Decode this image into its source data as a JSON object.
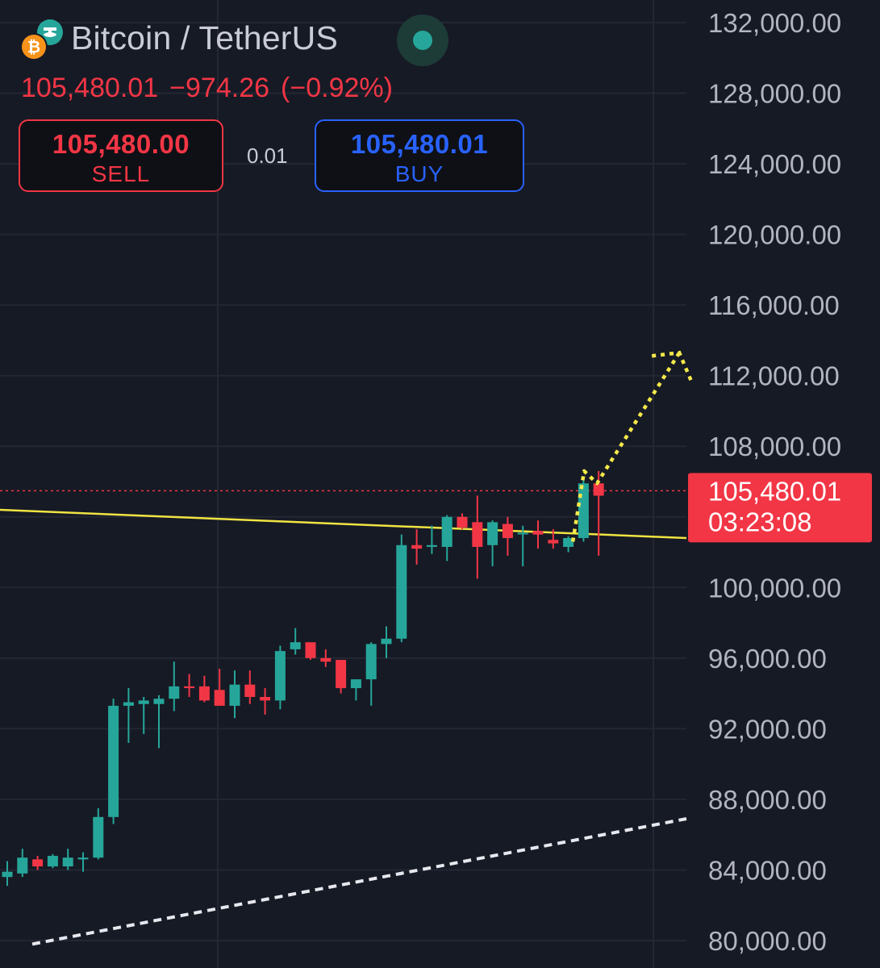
{
  "symbol": {
    "title": "Bitcoin / TetherUS",
    "base_icon": "bitcoin-icon",
    "quote_icon": "tether-icon",
    "market_status": "open"
  },
  "quote": {
    "last": "105,480.01",
    "change": "−974.26",
    "change_pct": "(−0.92%)"
  },
  "trade": {
    "sell_price": "105,480.00",
    "sell_label": "SELL",
    "spread": "0.01",
    "buy_price": "105,480.01",
    "buy_label": "BUY"
  },
  "price_tag": {
    "price": "105,480.01",
    "countdown": "03:23:08"
  },
  "colors": {
    "background": "#161a25",
    "up": "#26a69a",
    "down": "#f23645",
    "buy": "#2962ff",
    "trendline": "#f0e442",
    "projection": "#f5e94a",
    "support": "#e6e8ee",
    "grid": "#232733"
  },
  "chart_data": {
    "type": "candlestick",
    "y_axis": {
      "min": 80000,
      "max": 132000,
      "ticks": [
        132000,
        128000,
        124000,
        120000,
        116000,
        112000,
        108000,
        100000,
        96000,
        92000,
        88000,
        84000,
        80000
      ],
      "tick_labels": [
        "132,000.00",
        "128,000.00",
        "124,000.00",
        "120,000.00",
        "116,000.00",
        "112,000.00",
        "108,000.00",
        "100,000.00",
        "96,000.00",
        "92,000.00",
        "88,000.00",
        "84,000.00",
        "80,000.00"
      ],
      "position": "right"
    },
    "grid": true,
    "current_price": 105480.01,
    "candles": [
      {
        "o": 83600,
        "h": 84500,
        "l": 83100,
        "c": 83900
      },
      {
        "o": 83800,
        "h": 85200,
        "l": 83600,
        "c": 84700
      },
      {
        "o": 84600,
        "h": 84800,
        "l": 84000,
        "c": 84200
      },
      {
        "o": 84200,
        "h": 84900,
        "l": 84100,
        "c": 84800
      },
      {
        "o": 84200,
        "h": 85200,
        "l": 84000,
        "c": 84700
      },
      {
        "o": 84600,
        "h": 85000,
        "l": 83900,
        "c": 84700
      },
      {
        "o": 84700,
        "h": 87500,
        "l": 84600,
        "c": 87000
      },
      {
        "o": 87000,
        "h": 93700,
        "l": 86600,
        "c": 93300
      },
      {
        "o": 93300,
        "h": 94300,
        "l": 91200,
        "c": 93500
      },
      {
        "o": 93400,
        "h": 93800,
        "l": 91700,
        "c": 93600
      },
      {
        "o": 93400,
        "h": 93900,
        "l": 90900,
        "c": 93700
      },
      {
        "o": 93700,
        "h": 95800,
        "l": 93000,
        "c": 94400
      },
      {
        "o": 94400,
        "h": 95100,
        "l": 93800,
        "c": 94300
      },
      {
        "o": 94400,
        "h": 95000,
        "l": 93500,
        "c": 93600
      },
      {
        "o": 94200,
        "h": 95400,
        "l": 93400,
        "c": 93300
      },
      {
        "o": 93300,
        "h": 95300,
        "l": 92600,
        "c": 94500
      },
      {
        "o": 94500,
        "h": 95300,
        "l": 93400,
        "c": 93800
      },
      {
        "o": 93800,
        "h": 94300,
        "l": 92800,
        "c": 93600
      },
      {
        "o": 93600,
        "h": 96700,
        "l": 93100,
        "c": 96400
      },
      {
        "o": 96500,
        "h": 97700,
        "l": 96200,
        "c": 96900
      },
      {
        "o": 96900,
        "h": 96800,
        "l": 95900,
        "c": 96000
      },
      {
        "o": 96000,
        "h": 96500,
        "l": 95500,
        "c": 95800
      },
      {
        "o": 95900,
        "h": 95700,
        "l": 94000,
        "c": 94300
      },
      {
        "o": 94300,
        "h": 94800,
        "l": 93600,
        "c": 94800
      },
      {
        "o": 94800,
        "h": 96900,
        "l": 93300,
        "c": 96800
      },
      {
        "o": 96800,
        "h": 97800,
        "l": 96000,
        "c": 97100
      },
      {
        "o": 97100,
        "h": 103000,
        "l": 96900,
        "c": 102400
      },
      {
        "o": 102400,
        "h": 103300,
        "l": 101300,
        "c": 102200
      },
      {
        "o": 102300,
        "h": 103500,
        "l": 101900,
        "c": 102400
      },
      {
        "o": 102300,
        "h": 104100,
        "l": 101500,
        "c": 104000
      },
      {
        "o": 104000,
        "h": 104200,
        "l": 103300,
        "c": 103400
      },
      {
        "o": 103700,
        "h": 105200,
        "l": 100500,
        "c": 102300
      },
      {
        "o": 102400,
        "h": 103800,
        "l": 101200,
        "c": 103700
      },
      {
        "o": 103600,
        "h": 104000,
        "l": 101800,
        "c": 102800
      },
      {
        "o": 103100,
        "h": 103500,
        "l": 101200,
        "c": 103100
      },
      {
        "o": 103200,
        "h": 103800,
        "l": 102200,
        "c": 103000
      },
      {
        "o": 102700,
        "h": 103300,
        "l": 102200,
        "c": 102500
      },
      {
        "o": 102300,
        "h": 102900,
        "l": 102000,
        "c": 102800
      },
      {
        "o": 102800,
        "h": 106300,
        "l": 102600,
        "c": 105900
      },
      {
        "o": 105900,
        "h": 106600,
        "l": 101800,
        "c": 105200
      }
    ],
    "trendline": {
      "start": 104400,
      "end": 102800,
      "style": "solid"
    },
    "support_line": {
      "start": 79800,
      "end": 86900,
      "style": "dashed"
    },
    "projection_arrow": {
      "from": 102600,
      "to": 113300,
      "style": "dotted",
      "direction": "up"
    }
  }
}
